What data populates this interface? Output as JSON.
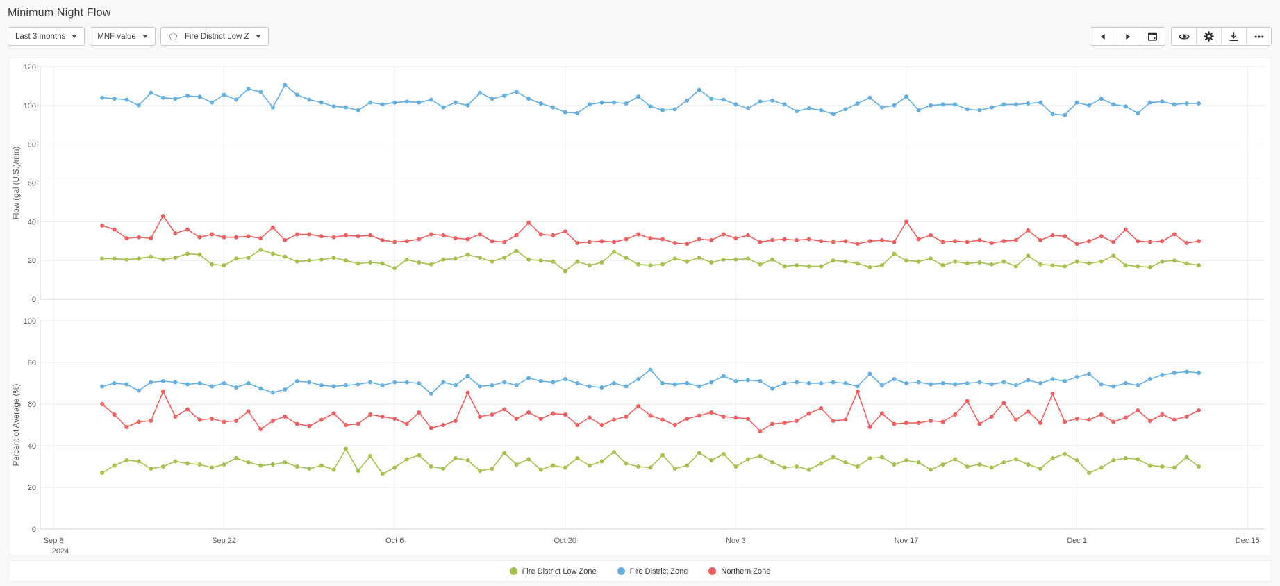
{
  "page": {
    "title": "Minimum Night Flow"
  },
  "toolbar": {
    "dropdowns": [
      {
        "label": "Last 3 months"
      },
      {
        "label": "MNF value"
      },
      {
        "label": "Fire District Low Z",
        "icon": "zone-icon"
      }
    ],
    "nav_group_icons": [
      "previous-icon",
      "next-icon",
      "calendar-icon"
    ],
    "action_group_icons": [
      "eye-icon",
      "gear-icon",
      "download-icon",
      "ellipsis-icon"
    ]
  },
  "legend": [
    {
      "label": "Fire District Low Zone",
      "color": "#a4c14c"
    },
    {
      "label": "Fire District Zone",
      "color": "#64afe0"
    },
    {
      "label": "Northern Zone",
      "color": "#ef5f5f"
    }
  ],
  "x_axis": {
    "tick_labels": [
      "Sep 8",
      "Sep 22",
      "Oct 6",
      "Oct 20",
      "Nov 3",
      "Nov 17",
      "Dec 1",
      "Dec 15"
    ],
    "year_label": "2024",
    "start_date": "2024-09-12",
    "end_date": "2024-12-11",
    "interval": "daily",
    "points": 91
  },
  "chart_data": [
    {
      "type": "line",
      "title": "Minimum Night Flow",
      "ylabel": "Flow (gal (U.S.)/min)",
      "ylim": [
        0,
        120
      ],
      "yticks": [
        0,
        20,
        40,
        60,
        80,
        100,
        120
      ],
      "grid": true,
      "legend_position": "bottom",
      "series": [
        {
          "name": "Fire District Zone",
          "color": "#64afe0",
          "values": [
            104,
            103.5,
            103,
            100,
            106.5,
            104,
            103.5,
            105,
            104.5,
            101.5,
            105.5,
            103,
            108.5,
            107,
            99,
            110.5,
            105.5,
            103,
            101.5,
            99.5,
            99,
            97.5,
            101.5,
            100.5,
            101.5,
            102,
            101.5,
            103,
            99,
            101.5,
            100,
            106.5,
            103.5,
            105,
            107,
            103.5,
            101,
            99,
            96.5,
            96,
            100.5,
            101.5,
            101.5,
            101,
            104.5,
            99.5,
            97.5,
            98,
            102.5,
            108,
            103.5,
            103,
            100.5,
            98.5,
            102,
            102.5,
            100.5,
            97,
            98.5,
            97.5,
            95.5,
            98,
            101,
            104,
            99,
            100,
            104.5,
            97.5,
            100,
            100.5,
            100.5,
            98,
            97.5,
            99,
            100.5,
            100.5,
            101,
            101.5,
            95.5,
            95,
            101.5,
            100,
            103.5,
            100.5,
            99.5,
            96,
            101.5,
            102,
            100.5,
            101,
            101
          ]
        },
        {
          "name": "Northern Zone",
          "color": "#ef5f5f",
          "values": [
            38,
            36,
            31.5,
            32,
            31.5,
            43,
            34,
            36,
            32,
            33.5,
            32,
            32,
            32.5,
            31.5,
            37,
            30.5,
            33.5,
            33.5,
            32.5,
            32,
            33,
            32.5,
            33,
            30.5,
            29.5,
            30,
            31,
            33.5,
            33,
            31.5,
            31,
            33.5,
            30,
            29.5,
            33,
            39.5,
            33.5,
            33,
            35,
            29,
            29.5,
            30,
            29.5,
            31,
            33.5,
            31.5,
            31,
            29,
            28.5,
            31,
            30.5,
            33.5,
            31.5,
            33,
            29.5,
            30.5,
            31,
            30.5,
            31,
            30,
            29.5,
            30,
            28.5,
            30,
            30.5,
            29.5,
            40,
            31,
            33,
            29.5,
            30,
            29.5,
            30.5,
            29,
            30,
            30.5,
            35.5,
            30.5,
            33,
            32.5,
            28.5,
            30,
            32.5,
            29.5,
            36,
            30,
            29.5,
            30,
            33.5,
            29,
            30
          ]
        },
        {
          "name": "Fire District Low Zone",
          "color": "#a4c14c",
          "values": [
            21,
            21,
            20.5,
            21,
            22,
            20.5,
            21.5,
            23.5,
            23,
            18,
            17.5,
            21,
            21.5,
            25.5,
            23.5,
            22,
            19.5,
            20,
            20.5,
            21.5,
            20,
            18.5,
            19,
            18.5,
            16,
            20.5,
            19,
            18,
            20.5,
            21,
            23,
            21.5,
            19.5,
            21.5,
            25,
            20.5,
            20,
            19.5,
            14.5,
            19.5,
            17.5,
            19,
            24.5,
            21.5,
            18,
            17.5,
            18,
            21,
            19.5,
            21.5,
            19,
            20.5,
            20.5,
            21,
            18,
            20.5,
            17,
            17.5,
            17,
            17,
            20,
            19.5,
            18.5,
            16.5,
            17.5,
            23.5,
            20,
            19.5,
            21,
            17.5,
            19.5,
            18.5,
            19,
            18,
            19.5,
            17,
            22.5,
            18,
            17.5,
            17,
            19.5,
            18.5,
            19.5,
            22.5,
            17.5,
            17,
            16.5,
            19.5,
            20,
            18.5,
            17.5
          ]
        }
      ]
    },
    {
      "type": "line",
      "title": "",
      "ylabel": "Percent of Average (%)",
      "ylim": [
        0,
        105
      ],
      "yticks": [
        0,
        20,
        40,
        60,
        80,
        100
      ],
      "grid": true,
      "legend_position": "bottom",
      "series": [
        {
          "name": "Fire District Zone",
          "color": "#64afe0",
          "values": [
            68.5,
            70,
            69.5,
            66.5,
            70.5,
            71,
            70.5,
            69.5,
            70,
            68.5,
            70,
            68,
            70,
            67.5,
            65.5,
            67,
            71,
            70.5,
            69,
            68.5,
            69,
            69.5,
            70.5,
            69,
            70.5,
            70.5,
            70,
            65,
            70.5,
            69,
            73.5,
            68.5,
            69,
            70.5,
            69,
            72.5,
            71,
            70.5,
            72,
            70,
            68.5,
            68,
            70,
            68.5,
            72,
            76.5,
            70,
            69.5,
            70,
            68.5,
            70.5,
            73.5,
            71,
            71.5,
            71,
            67.5,
            70,
            70.5,
            70,
            70,
            70.5,
            70,
            68.5,
            74.5,
            69,
            72,
            70,
            70.5,
            69.5,
            70,
            69.5,
            70,
            70.5,
            69.5,
            70.5,
            69,
            71.5,
            70,
            72,
            71,
            73,
            74.5,
            69.5,
            68.5,
            70,
            69,
            72,
            74,
            75,
            75.5,
            75
          ]
        },
        {
          "name": "Northern Zone",
          "color": "#ef5f5f",
          "values": [
            60,
            55,
            49,
            51.5,
            52,
            66,
            54,
            57.5,
            52.5,
            53,
            51.5,
            52,
            56.5,
            48,
            52,
            54,
            50.5,
            49.5,
            52.5,
            55.5,
            50,
            50.5,
            55,
            54,
            53,
            50.5,
            56,
            48.5,
            50,
            52,
            65.5,
            54,
            55,
            57.5,
            53,
            56,
            53,
            55.5,
            55,
            50,
            53.5,
            50,
            52.5,
            54,
            59,
            54.5,
            52.5,
            50,
            53,
            54.5,
            56,
            54,
            53.5,
            53,
            47,
            50.5,
            51,
            52,
            55.5,
            58,
            52,
            52.5,
            66,
            49,
            55.5,
            50.5,
            51,
            51,
            52,
            51.5,
            55,
            61.5,
            50.5,
            54,
            60.5,
            52.5,
            56.5,
            51,
            65,
            51.5,
            53,
            52.5,
            55,
            51.5,
            53.5,
            57,
            52,
            55,
            52.5,
            54,
            57
          ]
        },
        {
          "name": "Fire District Low Zone",
          "color": "#a4c14c",
          "values": [
            27,
            30.5,
            33,
            32.5,
            29,
            30,
            32.5,
            31.5,
            31,
            29.5,
            31,
            34,
            32,
            30.5,
            31,
            32,
            30,
            29,
            30.5,
            28.5,
            38.5,
            28,
            35,
            26.5,
            29.5,
            33.5,
            35.5,
            30,
            29,
            34,
            33,
            28,
            29,
            36.5,
            31,
            33.5,
            28.5,
            30.5,
            29.5,
            34,
            30.5,
            32.5,
            37,
            31.5,
            30,
            29.5,
            35.5,
            29,
            30.5,
            36.5,
            33,
            36,
            30,
            33.5,
            35,
            32,
            29.5,
            30,
            28.5,
            31.5,
            34.5,
            32,
            30,
            34,
            34.5,
            31,
            33,
            32,
            28.5,
            31,
            33.5,
            30,
            31,
            29.5,
            32,
            33.5,
            31,
            29,
            34,
            36,
            33,
            27,
            29.5,
            33,
            34,
            33.5,
            30.5,
            30,
            29.5,
            34.5,
            30
          ]
        }
      ]
    }
  ]
}
